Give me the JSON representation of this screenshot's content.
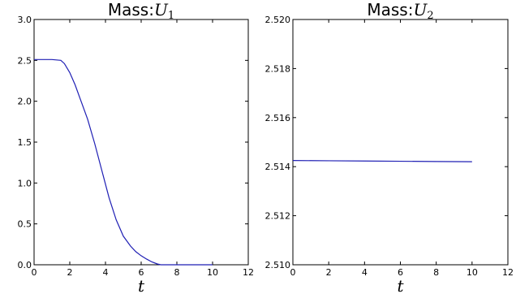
{
  "chart_data": [
    {
      "type": "line",
      "title": {
        "prefix": "Mass:",
        "var": "U",
        "sub": "1"
      },
      "xlabel": "t",
      "xlim": [
        0,
        12
      ],
      "ylim": [
        0.0,
        3.0
      ],
      "xticks": [
        "0",
        "2",
        "4",
        "6",
        "8",
        "10",
        "12"
      ],
      "yticks": [
        "0.0",
        "0.5",
        "1.0",
        "1.5",
        "2.0",
        "2.5",
        "3.0"
      ],
      "grid": false,
      "series": [
        {
          "color": "#1f1fb4",
          "x": [
            0.0,
            0.5,
            1.0,
            1.5,
            1.7,
            2.0,
            2.3,
            2.6,
            3.0,
            3.4,
            3.8,
            4.2,
            4.6,
            5.0,
            5.4,
            5.7,
            6.0,
            6.3,
            6.6,
            6.9,
            7.1,
            7.5,
            8.0,
            9.0,
            10.0
          ],
          "y": [
            2.51,
            2.51,
            2.51,
            2.5,
            2.46,
            2.35,
            2.2,
            2.02,
            1.78,
            1.48,
            1.15,
            0.82,
            0.55,
            0.35,
            0.23,
            0.16,
            0.11,
            0.07,
            0.035,
            0.01,
            0.0,
            0.0,
            0.0,
            0.0,
            0.0
          ]
        }
      ]
    },
    {
      "type": "line",
      "title": {
        "prefix": "Mass:",
        "var": "U",
        "sub": "2"
      },
      "xlabel": "t",
      "xlim": [
        0,
        12
      ],
      "ylim": [
        2.51,
        2.52
      ],
      "xticks": [
        "0",
        "2",
        "4",
        "6",
        "8",
        "10",
        "12"
      ],
      "yticks": [
        "2.510",
        "2.512",
        "2.514",
        "2.516",
        "2.518",
        "2.520"
      ],
      "grid": false,
      "series": [
        {
          "color": "#1f1fb4",
          "x": [
            0.0,
            2.0,
            4.0,
            6.0,
            8.0,
            10.0
          ],
          "y": [
            2.51425,
            2.51424,
            2.51423,
            2.51422,
            2.51421,
            2.5142
          ]
        }
      ]
    }
  ]
}
